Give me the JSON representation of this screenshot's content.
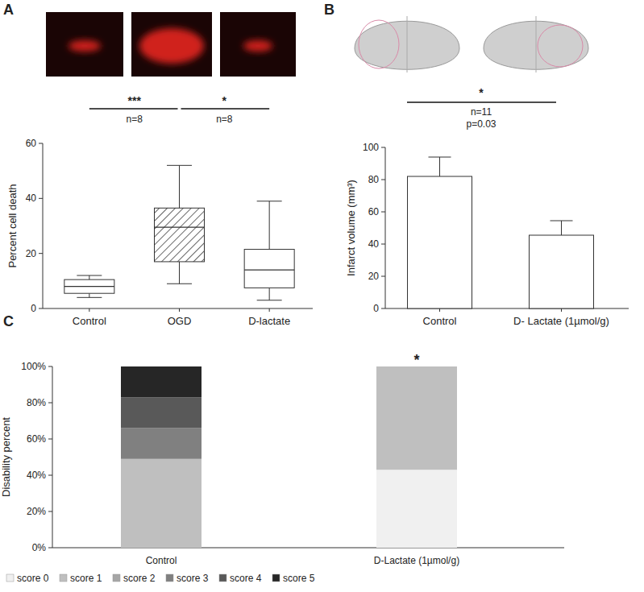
{
  "chart_data": [
    {
      "type": "box",
      "label": "A",
      "y_label": "Percent cell death",
      "categories": [
        "Control",
        "OGD",
        "D-lactate"
      ],
      "boxes": [
        {
          "min": 4,
          "q1": 5.5,
          "median": 8,
          "q3": 10.5,
          "max": 12
        },
        {
          "min": 9,
          "q1": 17,
          "median": 29.5,
          "q3": 36.5,
          "max": 52
        },
        {
          "min": 3,
          "q1": 7.5,
          "median": 14,
          "q3": 21.5,
          "max": 39
        }
      ],
      "colors": [
        "#ffffff",
        "hatch",
        "#ffffff"
      ],
      "ylim": [
        0,
        60
      ],
      "yticks": [
        0,
        20,
        40,
        60
      ],
      "annotations": [
        {
          "stars": "***",
          "n": "n=8",
          "between": [
            "Control",
            "OGD"
          ]
        },
        {
          "stars": "*",
          "n": "n=8",
          "between": [
            "OGD",
            "D-lactate"
          ]
        }
      ]
    },
    {
      "type": "bar",
      "label": "B",
      "y_label": "Infarct volume (mm³)",
      "categories": [
        "Control",
        "D- Lactate (1µmol/g)"
      ],
      "values": [
        82,
        45.5
      ],
      "errors": [
        12,
        9
      ],
      "color": "#ffffff",
      "ylim": [
        0,
        100
      ],
      "yticks": [
        0,
        20,
        40,
        60,
        80,
        100
      ],
      "annotations": [
        {
          "stars": "*",
          "n": "n=11",
          "p": "p=0.03",
          "between": [
            "Control",
            "D- Lactate (1µmol/g)"
          ]
        }
      ]
    },
    {
      "type": "bar",
      "stacked": true,
      "label": "C",
      "y_label": "Disability percent",
      "categories": [
        "Control",
        "D-Lactate (1µmol/g)"
      ],
      "series": [
        {
          "name": "score 0",
          "color": "#f0f0f0",
          "values": [
            0,
            43
          ]
        },
        {
          "name": "score 1",
          "color": "#bfbfbf",
          "values": [
            49,
            57
          ]
        },
        {
          "name": "score 2",
          "color": "#a6a6a6",
          "values": [
            0,
            0
          ]
        },
        {
          "name": "score 3",
          "color": "#808080",
          "values": [
            17,
            0
          ]
        },
        {
          "name": "score 4",
          "color": "#595959",
          "values": [
            17,
            0
          ]
        },
        {
          "name": "score 5",
          "color": "#262626",
          "values": [
            17,
            0
          ]
        }
      ],
      "ylim": [
        0,
        100
      ],
      "yticks": [
        {
          "value": 0,
          "label": "0%"
        },
        {
          "value": 20,
          "label": "20%"
        },
        {
          "value": 40,
          "label": "40%"
        },
        {
          "value": 60,
          "label": "60%"
        },
        {
          "value": 80,
          "label": "80%"
        },
        {
          "value": 100,
          "label": "100%"
        }
      ],
      "legend": "bottom",
      "annotations": [
        {
          "stars": "*",
          "category": "D-Lactate (1µmol/g)"
        }
      ]
    }
  ]
}
